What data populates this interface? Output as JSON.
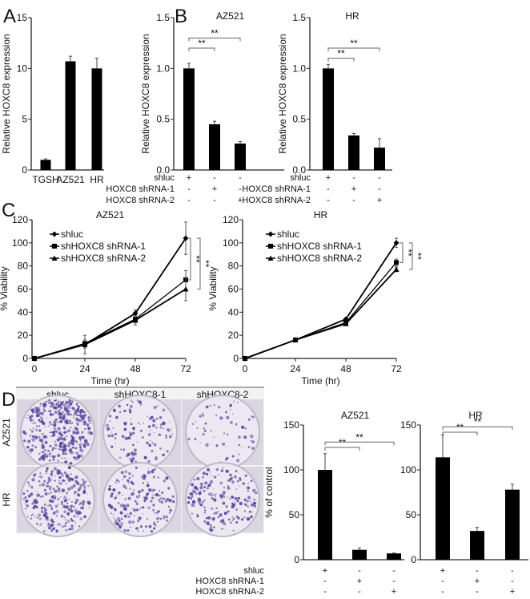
{
  "panel_letters": [
    "A",
    "B",
    "C",
    "D"
  ],
  "condition_rows": [
    "shluc",
    "HOXC8 shRNA-1",
    "HOXC8 shRNA-2"
  ],
  "condition_matrix": [
    [
      "+",
      "-",
      "-"
    ],
    [
      "-",
      "+",
      "-"
    ],
    [
      "-",
      "-",
      "+"
    ]
  ],
  "plates": {
    "column_labels": [
      "shluc",
      "shHOXC8-1",
      "shHOXC8-2"
    ],
    "row_labels": [
      "AZ521",
      "HR"
    ],
    "stain_color": "#5b4a9e"
  },
  "chart_data": [
    {
      "id": "A",
      "type": "bar",
      "title": "",
      "categories": [
        "TGSH",
        "AZ521",
        "HR"
      ],
      "values": [
        1.0,
        10.7,
        10.0
      ],
      "errors": [
        0.1,
        0.5,
        1.0
      ],
      "ylabel": "Relative HOXC8 expression",
      "xlabel": "",
      "ylim": [
        0,
        15
      ],
      "yticks": [
        "0",
        "5",
        "10",
        "15"
      ],
      "ytick_values": [
        0,
        5,
        10,
        15
      ],
      "grid": false,
      "bar_color": "#000000"
    },
    {
      "id": "B-AZ521",
      "type": "bar",
      "title": "AZ521",
      "categories": [
        "shluc",
        "HOXC8 shRNA-1",
        "HOXC8 shRNA-2"
      ],
      "values": [
        1.0,
        0.45,
        0.26
      ],
      "errors": [
        0.05,
        0.03,
        0.02
      ],
      "ylabel": "Relative HOXC8 expression",
      "ylim": [
        0,
        1.5
      ],
      "yticks": [
        "0.0",
        "0.5",
        "1.0",
        "1.5"
      ],
      "ytick_values": [
        0,
        0.5,
        1.0,
        1.5
      ],
      "significance": [
        {
          "from": 0,
          "to": 1,
          "label": "**",
          "y": 1.2
        },
        {
          "from": 0,
          "to": 2,
          "label": "**",
          "y": 1.3
        }
      ],
      "grid": false,
      "bar_color": "#000000"
    },
    {
      "id": "B-HR",
      "type": "bar",
      "title": "HR",
      "categories": [
        "shluc",
        "HOXC8 shRNA-1",
        "HOXC8 shRNA-2"
      ],
      "values": [
        1.0,
        0.34,
        0.22
      ],
      "errors": [
        0.04,
        0.02,
        0.09
      ],
      "ylabel": "Relative HOXC8 expression",
      "ylim": [
        0,
        1.5
      ],
      "yticks": [
        "0.0",
        "0.5",
        "1.0",
        "1.5"
      ],
      "ytick_values": [
        0,
        0.5,
        1.0,
        1.5
      ],
      "significance": [
        {
          "from": 0,
          "to": 1,
          "label": "**",
          "y": 1.1
        },
        {
          "from": 0,
          "to": 2,
          "label": "**",
          "y": 1.2
        }
      ],
      "grid": false,
      "bar_color": "#000000"
    },
    {
      "id": "C-AZ521",
      "type": "line",
      "title": "AZ521",
      "x": [
        0,
        24,
        48,
        72
      ],
      "series": [
        {
          "name": "shluc",
          "values": [
            0,
            12,
            39,
            104
          ],
          "errors": [
            0,
            8,
            3,
            14
          ],
          "marker": "diamond"
        },
        {
          "name": "shHOXC8 shRNA-1",
          "values": [
            0,
            13,
            34,
            68
          ],
          "errors": [
            0,
            3,
            3,
            8
          ],
          "marker": "square"
        },
        {
          "name": "shHOXC8 shRNA-2",
          "values": [
            0,
            12,
            33,
            60
          ],
          "errors": [
            0,
            3,
            4,
            10
          ],
          "marker": "triangle"
        }
      ],
      "xlabel": "Time (hr)",
      "ylabel": "% Viability",
      "xlim": [
        0,
        72
      ],
      "ylim": [
        0,
        120
      ],
      "xticks": [
        "0",
        "24",
        "48",
        "72"
      ],
      "xtick_values": [
        0,
        24,
        48,
        72
      ],
      "yticks": [
        "0",
        "20",
        "40",
        "60",
        "80",
        "100",
        "120"
      ],
      "ytick_values": [
        0,
        20,
        40,
        60,
        80,
        100,
        120
      ],
      "significance": [
        {
          "from": 0,
          "to": 1,
          "label": "**"
        },
        {
          "from": 0,
          "to": 2,
          "label": "**"
        }
      ],
      "legend": "top-left",
      "grid": false
    },
    {
      "id": "C-HR",
      "type": "line",
      "title": "HR",
      "x": [
        0,
        24,
        48,
        72
      ],
      "series": [
        {
          "name": "shluc",
          "values": [
            0,
            16,
            34,
            100
          ],
          "errors": [
            0,
            1,
            1,
            4
          ],
          "marker": "diamond"
        },
        {
          "name": "shHOXC8 shRNA-1",
          "values": [
            0,
            16,
            31,
            83
          ],
          "errors": [
            0,
            1,
            1,
            3
          ],
          "marker": "square"
        },
        {
          "name": "shHOXC8 shRNA-2",
          "values": [
            0,
            16,
            30,
            77
          ],
          "errors": [
            0,
            1,
            1,
            2
          ],
          "marker": "triangle"
        }
      ],
      "xlabel": "Time (hr)",
      "ylabel": "% Viability",
      "xlim": [
        0,
        72
      ],
      "ylim": [
        0,
        120
      ],
      "xticks": [
        "0",
        "24",
        "48",
        "72"
      ],
      "xtick_values": [
        0,
        24,
        48,
        72
      ],
      "yticks": [
        "0",
        "20",
        "40",
        "60",
        "80",
        "100",
        "120"
      ],
      "ytick_values": [
        0,
        20,
        40,
        60,
        80,
        100,
        120
      ],
      "significance": [
        {
          "from": 0,
          "to": 1,
          "label": "**"
        },
        {
          "from": 0,
          "to": 2,
          "label": "**"
        }
      ],
      "legend": "top-left",
      "grid": false
    },
    {
      "id": "D-AZ521",
      "type": "bar",
      "title": "AZ521",
      "categories": [
        "shluc",
        "HOXC8 shRNA-1",
        "HOXC8 shRNA-2"
      ],
      "values": [
        100,
        11,
        7
      ],
      "errors": [
        18,
        2,
        0.5
      ],
      "ylabel": "% of control",
      "ylim": [
        0,
        150
      ],
      "yticks": [
        "0",
        "50",
        "100",
        "150"
      ],
      "ytick_values": [
        0,
        50,
        100,
        150
      ],
      "significance": [
        {
          "from": 0,
          "to": 1,
          "label": "**",
          "y": 125
        },
        {
          "from": 0,
          "to": 2,
          "label": "**",
          "y": 131
        }
      ],
      "grid": false,
      "bar_color": "#000000"
    },
    {
      "id": "D-HR",
      "type": "bar",
      "title": "HR",
      "categories": [
        "shluc",
        "HOXC8 shRNA-1",
        "HOXC8 shRNA-2"
      ],
      "values": [
        114,
        32,
        78
      ],
      "errors": [
        25,
        4,
        6
      ],
      "ylabel": "",
      "ylim": [
        0,
        150
      ],
      "yticks": [
        "0",
        "50",
        "100",
        "150"
      ],
      "ytick_values": [
        0,
        50,
        100,
        150
      ],
      "significance": [
        {
          "from": 0,
          "to": 1,
          "label": "**",
          "y": 142
        },
        {
          "from": 0,
          "to": 2,
          "label": "**",
          "y": 148
        }
      ],
      "grid": false,
      "bar_color": "#000000"
    }
  ]
}
